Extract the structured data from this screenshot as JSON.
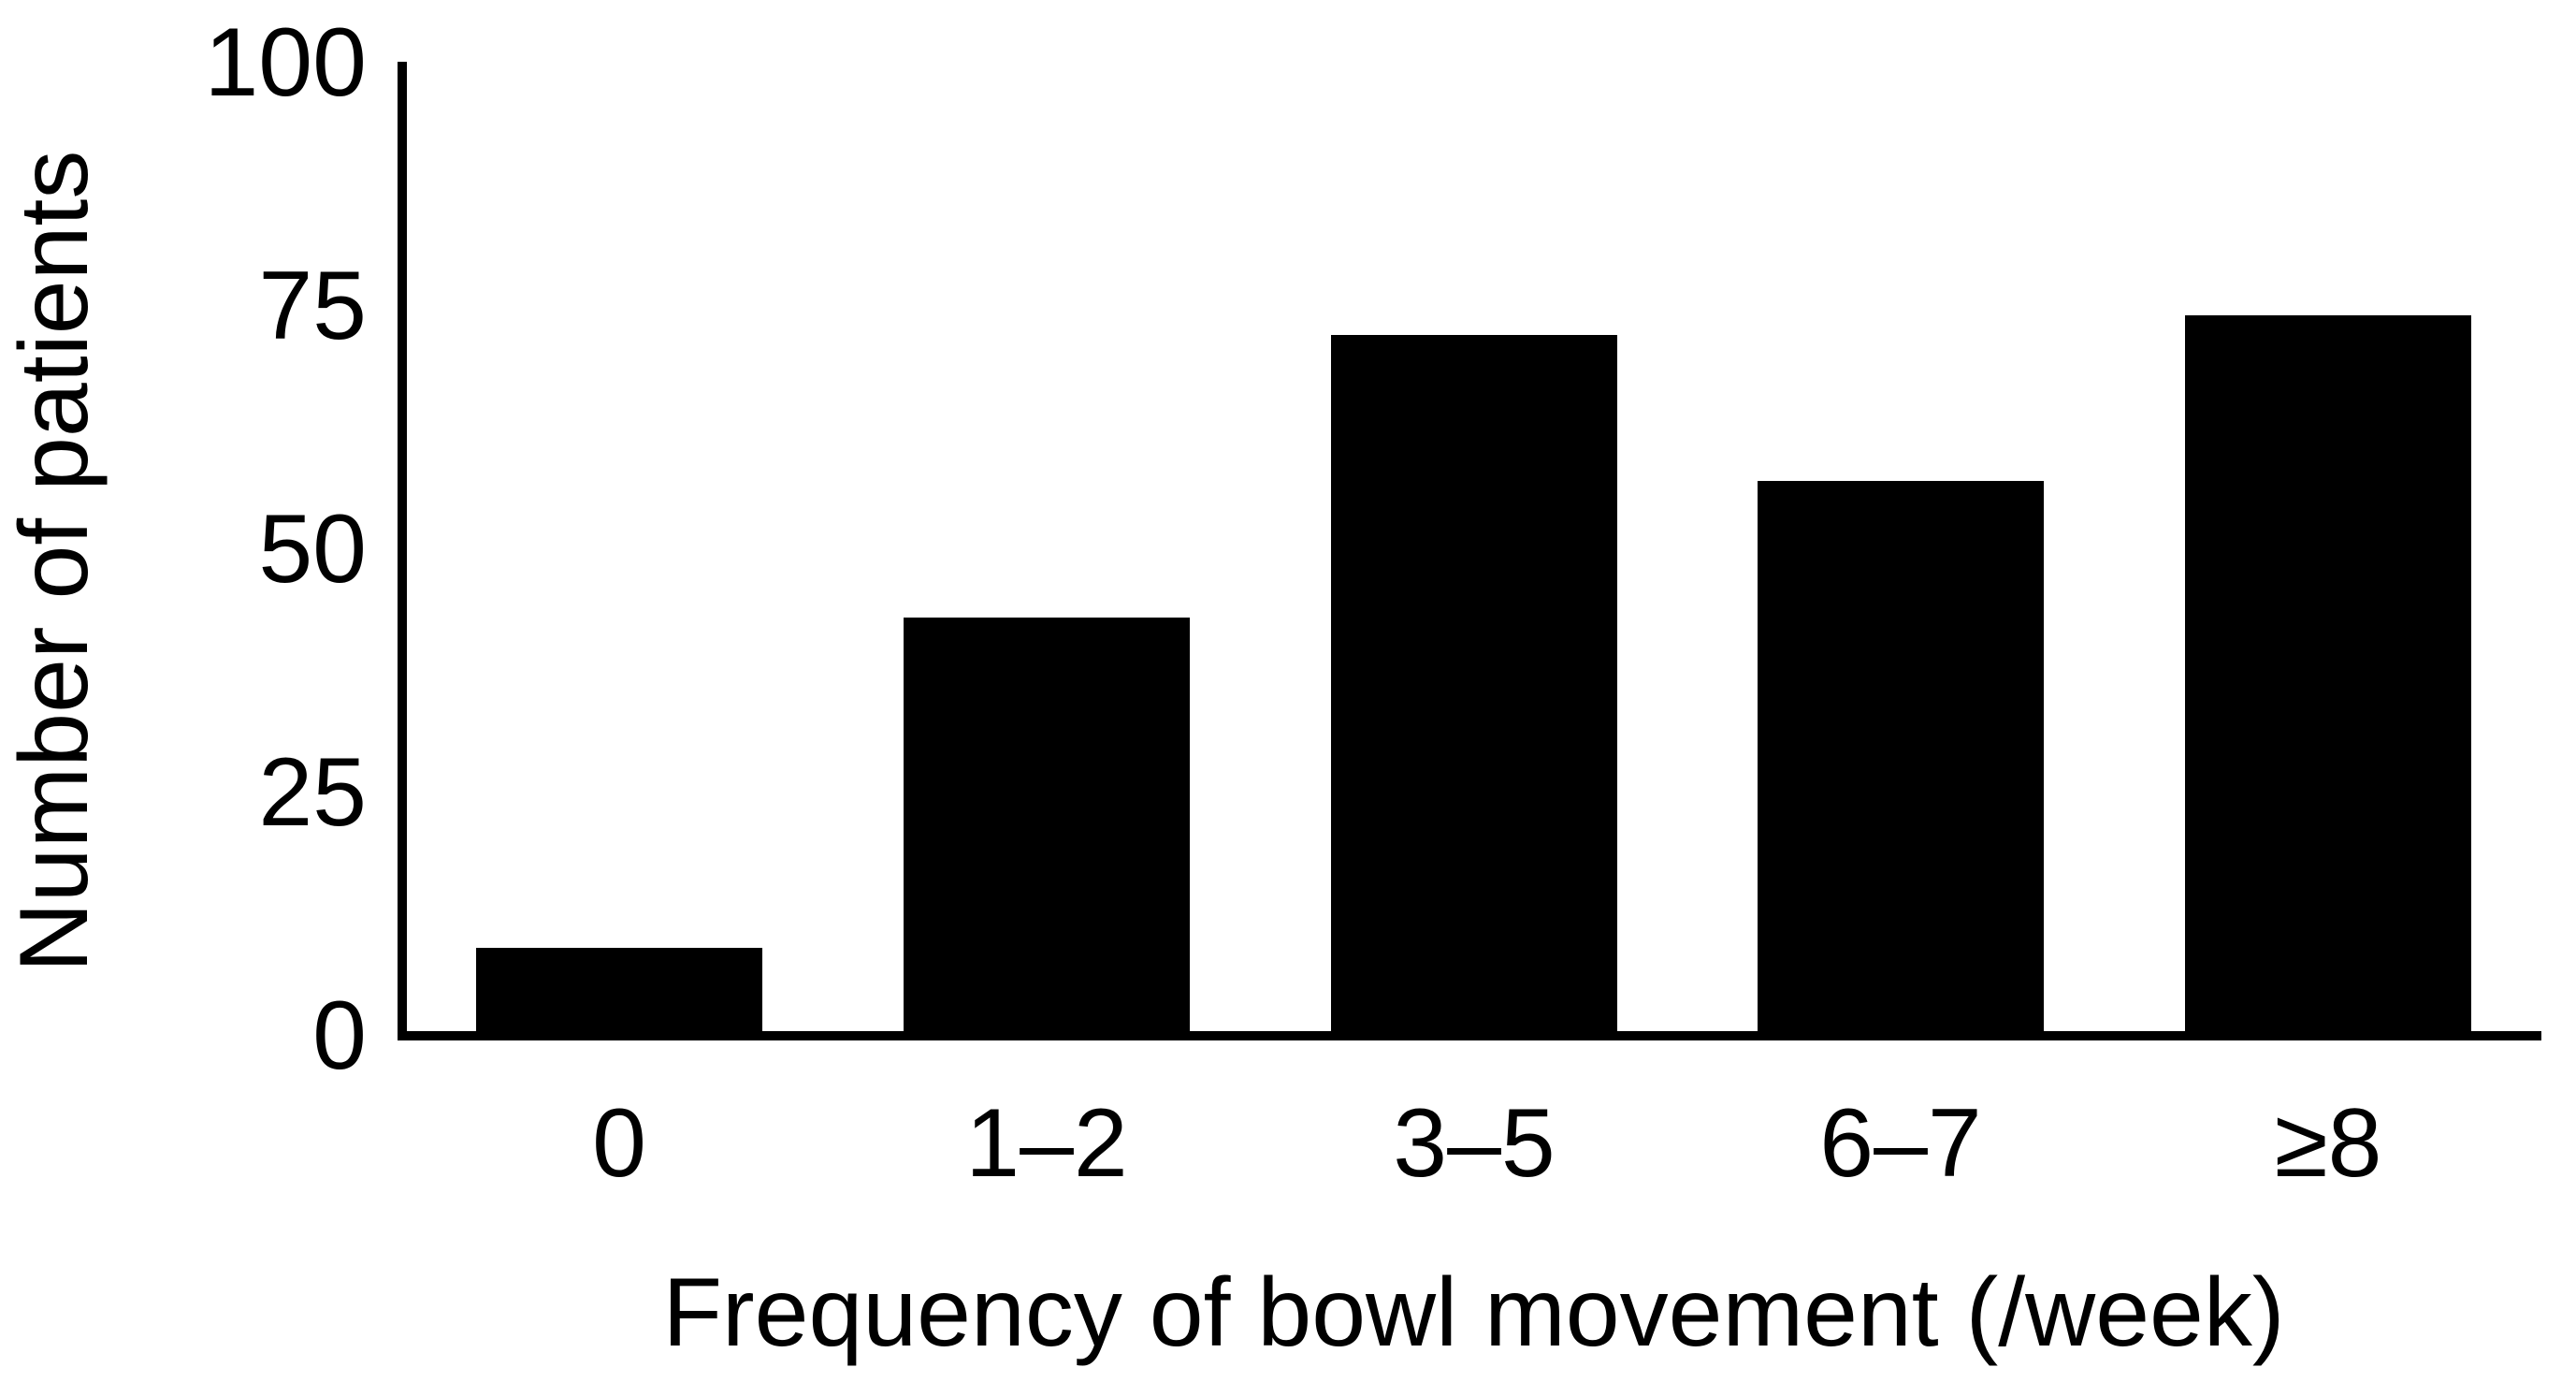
{
  "page": {
    "background": "#ffffff",
    "foreground": "#000000"
  },
  "chart_data": {
    "type": "bar",
    "categories": [
      "0",
      "1–2",
      "3–5",
      "6–7",
      "≥8"
    ],
    "values": [
      9,
      43,
      72,
      57,
      74
    ],
    "xlabel": "Frequency of bowl movement (/week)",
    "ylabel": "Number of patients",
    "yticks": [
      0,
      25,
      50,
      75,
      100
    ],
    "ylim": [
      0,
      100
    ],
    "bar_color": "#000000",
    "axis_color": "#000000",
    "grid": false,
    "legend": null
  }
}
